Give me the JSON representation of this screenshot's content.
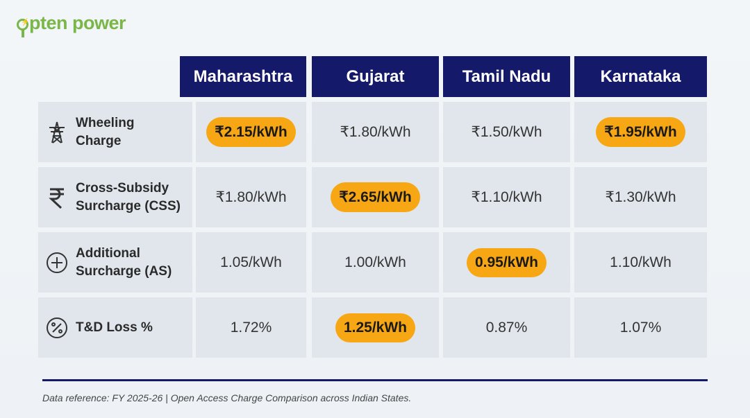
{
  "brand": {
    "name": "opten power",
    "accent": "#7ab648",
    "header_color": "#14196a",
    "highlight": "#f7a614"
  },
  "columns": [
    "Maharashtra",
    "Gujarat",
    "Tamil Nadu",
    "Karnataka"
  ],
  "rows": [
    {
      "label": [
        "Wheeling",
        "Charge"
      ],
      "icon": "transmission-tower-icon",
      "values": [
        "₹2.15/kWh",
        "₹1.80/kWh",
        "₹1.50/kWh",
        "₹1.95/kWh"
      ],
      "highlight": [
        true,
        false,
        false,
        true
      ]
    },
    {
      "label": [
        "Cross-Subsidy",
        "Surcharge (CSS)"
      ],
      "icon": "rupee-icon",
      "values": [
        "₹1.80/kWh",
        "₹2.65/kWh",
        "₹1.10/kWh",
        "₹1.30/kWh"
      ],
      "highlight": [
        false,
        true,
        false,
        false
      ]
    },
    {
      "label": [
        "Additional",
        "Surcharge (AS)"
      ],
      "icon": "plus-circle-icon",
      "values": [
        "1.05/kWh",
        "1.00/kWh",
        "0.95/kWh",
        "1.10/kWh"
      ],
      "highlight": [
        false,
        false,
        true,
        false
      ]
    },
    {
      "label": [
        "T&D Loss %"
      ],
      "icon": "percent-circle-icon",
      "values": [
        "1.72%",
        "1.25/kWh",
        "0.87%",
        "1.07%"
      ],
      "highlight": [
        false,
        true,
        false,
        false
      ]
    }
  ],
  "footer": "Data reference: FY 2025-26 | Open Access Charge Comparison across Indian States."
}
